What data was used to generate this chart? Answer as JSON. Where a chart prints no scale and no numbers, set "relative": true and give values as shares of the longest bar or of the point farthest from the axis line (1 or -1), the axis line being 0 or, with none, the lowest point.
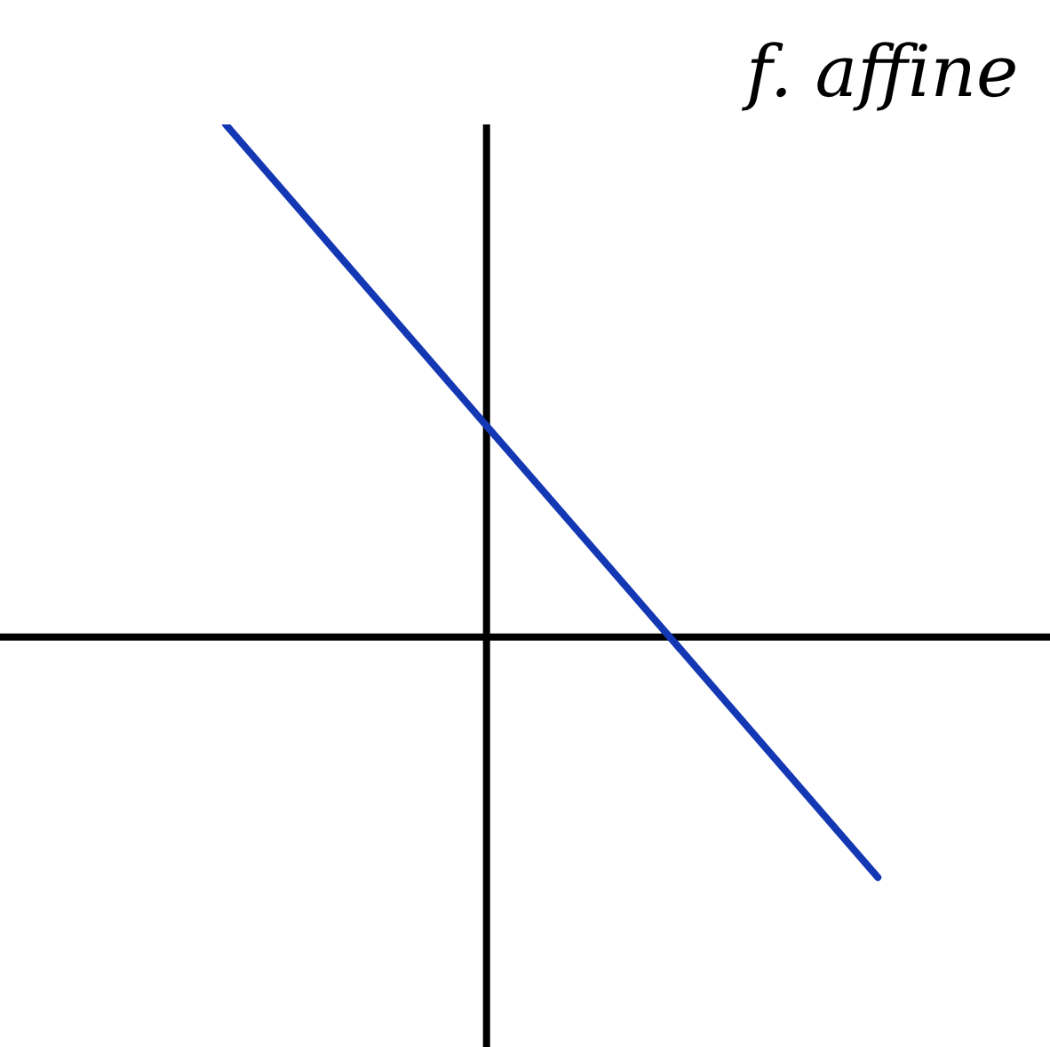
{
  "chart_data": {
    "type": "line",
    "title": "f. affine",
    "relative": true,
    "categories": [
      null,
      null,
      null,
      null,
      null,
      null
    ],
    "series": [
      {
        "color": "#1437b4",
        "values": [
          1,
          0.706,
          0.412,
          0.119,
          -0.175,
          -0.469
        ]
      }
    ],
    "grid": false,
    "legend": false,
    "marker": "none",
    "line_style": "solid"
  }
}
